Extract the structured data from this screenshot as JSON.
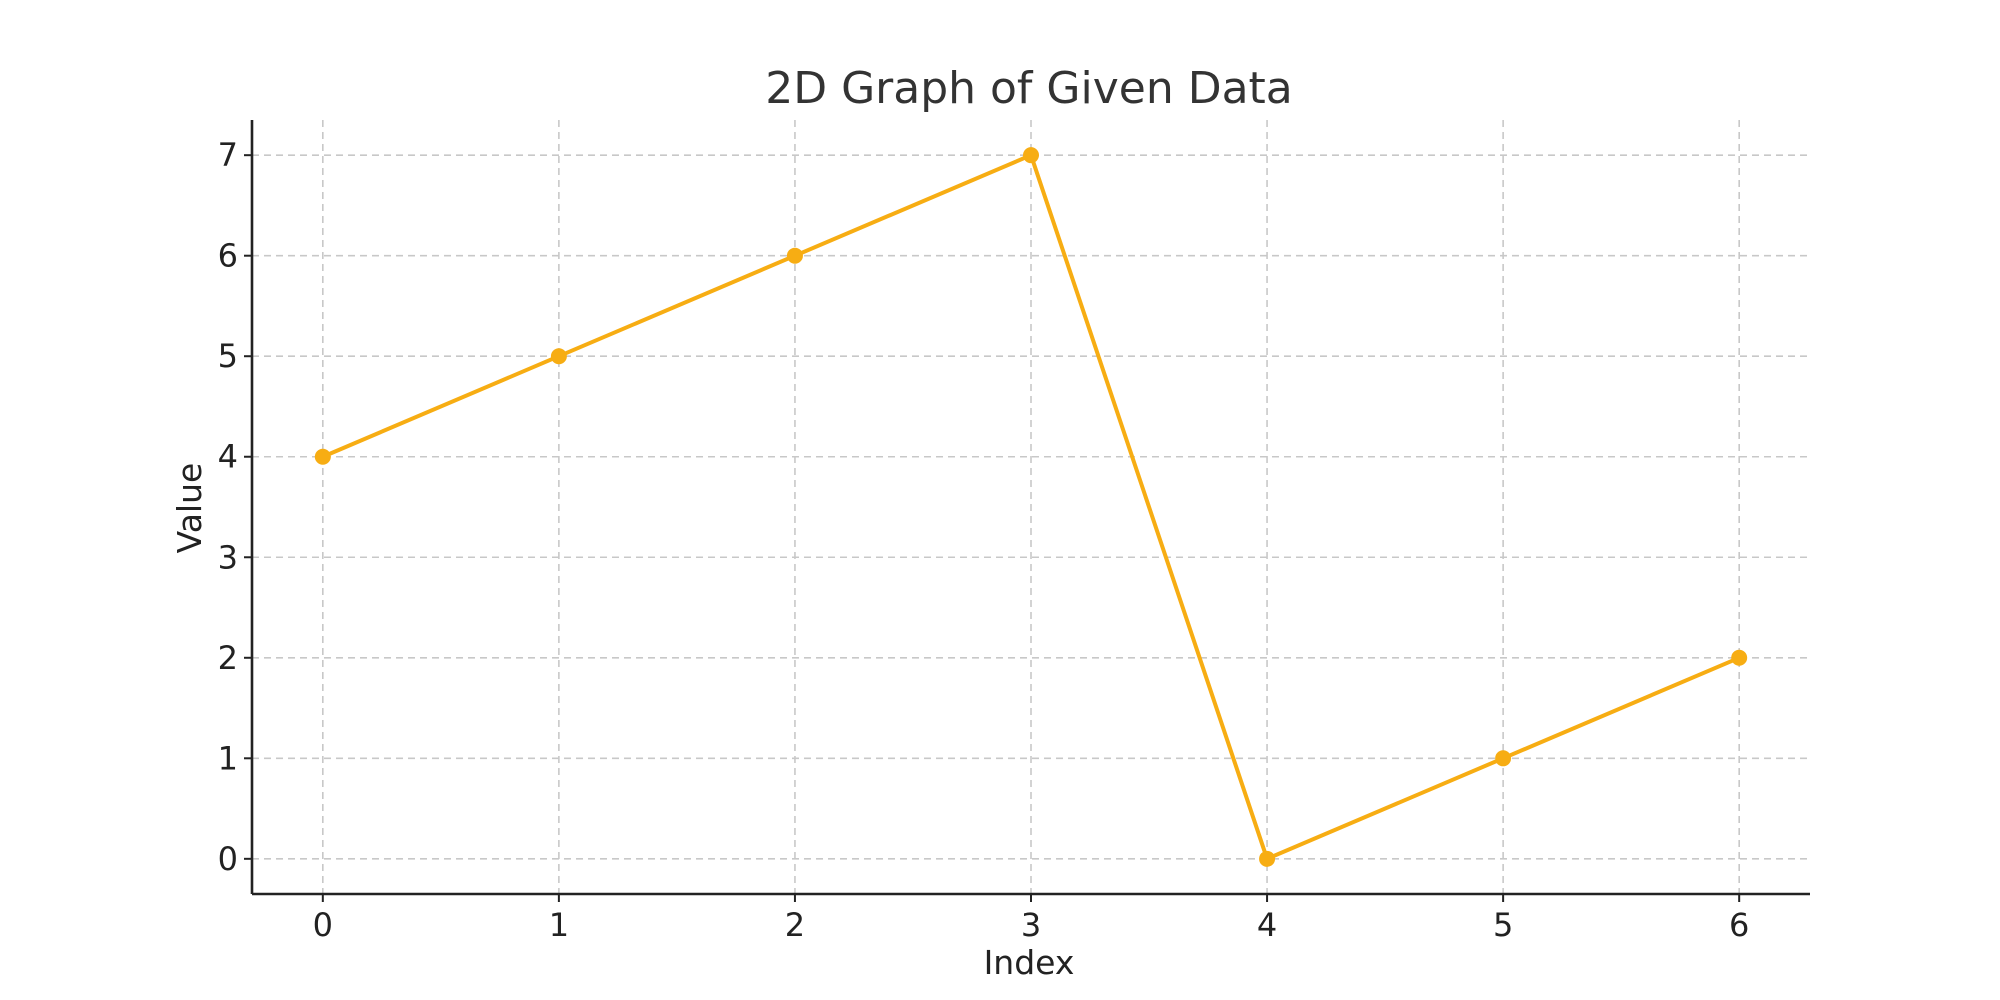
{
  "chart_data": {
    "type": "line",
    "title": "2D Graph of Given Data",
    "xlabel": "Index",
    "ylabel": "Value",
    "x": [
      0,
      1,
      2,
      3,
      4,
      5,
      6
    ],
    "xticks": [
      0,
      1,
      2,
      3,
      4,
      5,
      6
    ],
    "yticks": [
      0,
      1,
      2,
      3,
      4,
      5,
      6,
      7
    ],
    "xlim": [
      -0.3,
      6.3
    ],
    "ylim": [
      -0.35,
      7.35
    ],
    "grid": true,
    "series": [
      {
        "values": [
          4,
          5,
          6,
          7,
          0,
          1,
          2
        ],
        "color": "#f7ad13",
        "marker": "circle"
      }
    ]
  }
}
